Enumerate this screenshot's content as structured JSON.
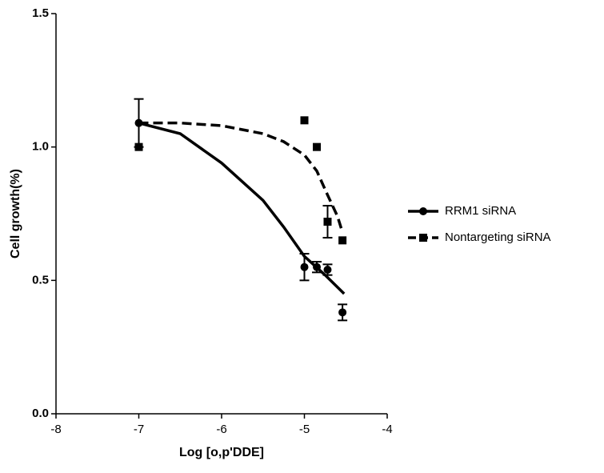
{
  "chart_data": {
    "type": "scatter",
    "x_label": "Log [o,p'DDE]",
    "y_label": "Cell growth(%)",
    "xlim": [
      -8,
      -4
    ],
    "xticks": [
      -8,
      -7,
      -6,
      -5,
      -4
    ],
    "ylim": [
      0,
      1.5
    ],
    "yticks": [
      {
        "value": 0,
        "label": "0.0"
      },
      0.5,
      {
        "value": 1,
        "label": "1.0"
      },
      1.5
    ],
    "legend": "right",
    "series": [
      {
        "name": "RRM1 siRNA",
        "color": "#000000",
        "marker": "circle",
        "linestyle": "solid",
        "x": [
          -7,
          -5,
          -4.85,
          -4.72,
          -4.54
        ],
        "values": [
          1.09,
          0.55,
          0.55,
          0.54,
          0.38
        ],
        "errors": [
          0.09,
          0.05,
          0.02,
          0.02,
          0.03
        ],
        "fit_x": [
          -7,
          -6.5,
          -6,
          -5.5,
          -5.25,
          -5,
          -4.75,
          -4.52
        ],
        "fit_y": [
          1.09,
          1.05,
          0.94,
          0.8,
          0.7,
          0.59,
          0.52,
          0.45
        ]
      },
      {
        "name": "Nontargeting siRNA",
        "color": "#000000",
        "marker": "square",
        "linestyle": "dashed",
        "x": [
          -7,
          -5,
          -4.85,
          -4.72,
          -4.54
        ],
        "values": [
          1.0,
          1.1,
          1.0,
          0.72,
          0.65
        ],
        "errors": [
          null,
          null,
          null,
          0.06,
          null
        ],
        "fit_x": [
          -7,
          -6.5,
          -6,
          -5.5,
          -5.25,
          -5,
          -4.85,
          -4.72,
          -4.6,
          -4.54
        ],
        "fit_y": [
          1.09,
          1.09,
          1.08,
          1.05,
          1.02,
          0.97,
          0.91,
          0.82,
          0.74,
          0.68
        ]
      }
    ]
  }
}
